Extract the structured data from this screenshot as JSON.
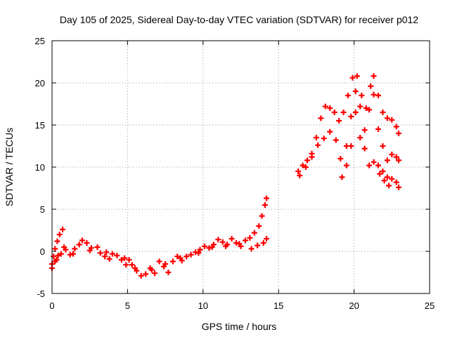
{
  "chart_data": {
    "type": "scatter",
    "title": "Day 105 of 2025, Sidereal Day-to-day VTEC variation (SDTVAR) for receiver p012",
    "xlabel": "GPS time / hours",
    "ylabel": "SDTVAR / TECUs",
    "xlim": [
      0,
      25
    ],
    "ylim": [
      -5,
      25
    ],
    "xticks": [
      0,
      5,
      10,
      15,
      20,
      25
    ],
    "yticks": [
      -5,
      0,
      5,
      10,
      15,
      20,
      25
    ],
    "grid": true,
    "marker": "+",
    "color": "#ff0000",
    "series": [
      {
        "name": "SDTVAR p012",
        "points": [
          [
            0.0,
            -1.5
          ],
          [
            0.1,
            -0.6
          ],
          [
            0.2,
            0.3
          ],
          [
            0.35,
            1.2
          ],
          [
            0.5,
            2.0
          ],
          [
            0.7,
            2.6
          ],
          [
            0.0,
            -2.0
          ],
          [
            0.2,
            -1.2
          ],
          [
            0.4,
            -0.5
          ],
          [
            0.6,
            -0.3
          ],
          [
            0.9,
            0.2
          ],
          [
            1.2,
            -0.4
          ],
          [
            1.5,
            0.3
          ],
          [
            1.8,
            0.8
          ],
          [
            2.0,
            1.3
          ],
          [
            2.3,
            1.0
          ],
          [
            2.6,
            0.4
          ],
          [
            3.0,
            0.5
          ],
          [
            3.2,
            -0.2
          ],
          [
            3.5,
            -0.6
          ],
          [
            3.8,
            -0.9
          ],
          [
            4.0,
            -0.3
          ],
          [
            4.3,
            -0.5
          ],
          [
            4.6,
            -1.0
          ],
          [
            4.9,
            -1.6
          ],
          [
            5.1,
            -1.0
          ],
          [
            5.3,
            -1.6
          ],
          [
            5.6,
            -2.3
          ],
          [
            5.9,
            -2.9
          ],
          [
            6.2,
            -2.7
          ],
          [
            6.5,
            -2.0
          ],
          [
            6.8,
            -2.6
          ],
          [
            7.1,
            -1.2
          ],
          [
            7.4,
            -1.8
          ],
          [
            7.7,
            -2.5
          ],
          [
            8.0,
            -1.2
          ],
          [
            8.3,
            -0.6
          ],
          [
            8.6,
            -1.1
          ],
          [
            8.9,
            -0.6
          ],
          [
            9.2,
            -0.4
          ],
          [
            9.5,
            -0.1
          ],
          [
            9.8,
            0.2
          ],
          [
            10.1,
            0.6
          ],
          [
            10.4,
            0.4
          ],
          [
            10.7,
            0.8
          ],
          [
            11.0,
            1.4
          ],
          [
            11.3,
            1.1
          ],
          [
            11.6,
            0.8
          ],
          [
            11.9,
            1.5
          ],
          [
            12.2,
            1.0
          ],
          [
            12.5,
            0.6
          ],
          [
            12.8,
            1.3
          ],
          [
            13.1,
            1.6
          ],
          [
            13.4,
            2.2
          ],
          [
            13.7,
            3.0
          ],
          [
            13.9,
            4.2
          ],
          [
            14.1,
            5.5
          ],
          [
            14.2,
            6.3
          ],
          [
            0.3,
            -1.0
          ],
          [
            0.8,
            0.5
          ],
          [
            1.4,
            -0.3
          ],
          [
            2.5,
            0.1
          ],
          [
            3.6,
            -0.1
          ],
          [
            4.8,
            -0.8
          ],
          [
            5.5,
            -2.0
          ],
          [
            6.6,
            -2.2
          ],
          [
            7.5,
            -1.5
          ],
          [
            8.5,
            -0.8
          ],
          [
            9.7,
            -0.2
          ],
          [
            10.6,
            0.5
          ],
          [
            11.5,
            0.6
          ],
          [
            12.4,
            0.9
          ],
          [
            13.2,
            0.3
          ],
          [
            13.6,
            0.7
          ],
          [
            14.0,
            1.0
          ],
          [
            14.2,
            1.5
          ],
          [
            16.3,
            9.5
          ],
          [
            16.6,
            10.2
          ],
          [
            16.9,
            10.8
          ],
          [
            17.2,
            11.6
          ],
          [
            17.5,
            13.5
          ],
          [
            17.8,
            15.8
          ],
          [
            18.1,
            17.2
          ],
          [
            18.4,
            17.0
          ],
          [
            18.7,
            16.5
          ],
          [
            19.0,
            15.5
          ],
          [
            19.3,
            16.5
          ],
          [
            19.6,
            18.5
          ],
          [
            19.9,
            20.6
          ],
          [
            20.2,
            20.8
          ],
          [
            20.5,
            18.5
          ],
          [
            20.8,
            17.0
          ],
          [
            21.1,
            19.6
          ],
          [
            21.3,
            20.8
          ],
          [
            21.6,
            18.5
          ],
          [
            21.9,
            16.5
          ],
          [
            22.2,
            15.8
          ],
          [
            22.5,
            15.6
          ],
          [
            22.8,
            14.8
          ],
          [
            22.95,
            14.0
          ],
          [
            16.4,
            9.0
          ],
          [
            16.8,
            10.0
          ],
          [
            17.2,
            11.2
          ],
          [
            17.6,
            12.6
          ],
          [
            18.0,
            13.4
          ],
          [
            18.4,
            14.2
          ],
          [
            18.8,
            13.2
          ],
          [
            19.1,
            11.0
          ],
          [
            19.5,
            12.5
          ],
          [
            19.8,
            16.0
          ],
          [
            20.1,
            19.0
          ],
          [
            20.4,
            17.2
          ],
          [
            20.7,
            14.4
          ],
          [
            21.0,
            16.8
          ],
          [
            21.3,
            18.6
          ],
          [
            21.6,
            14.5
          ],
          [
            21.9,
            12.5
          ],
          [
            22.2,
            10.8
          ],
          [
            22.5,
            11.5
          ],
          [
            22.8,
            11.2
          ],
          [
            22.95,
            10.8
          ],
          [
            19.2,
            8.8
          ],
          [
            19.5,
            10.2
          ],
          [
            19.8,
            12.5
          ],
          [
            20.1,
            16.5
          ],
          [
            20.4,
            13.5
          ],
          [
            20.7,
            12.2
          ],
          [
            21.0,
            10.2
          ],
          [
            21.3,
            10.6
          ],
          [
            21.6,
            10.2
          ],
          [
            21.9,
            9.5
          ],
          [
            22.2,
            8.8
          ],
          [
            22.5,
            8.6
          ],
          [
            22.8,
            8.2
          ],
          [
            22.95,
            7.6
          ],
          [
            21.7,
            9.2
          ],
          [
            22.0,
            8.4
          ],
          [
            22.3,
            7.8
          ]
        ]
      }
    ]
  }
}
